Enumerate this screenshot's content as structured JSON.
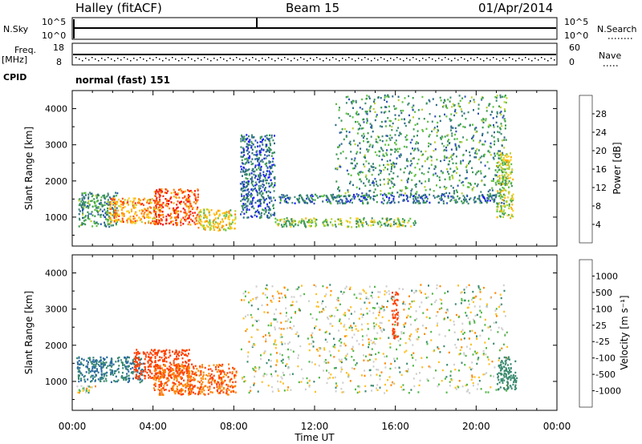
{
  "header": {
    "station": "Halley (fitACF)",
    "beam": "Beam 15",
    "date": "01/Apr/2014"
  },
  "strips": {
    "nsky_label": "N.Sky",
    "nsky_ticks": [
      "10^5",
      "10^0"
    ],
    "nsearch_label": "N.Search",
    "nsearch_ticks": [
      "10^5",
      "10^0"
    ],
    "freq_label": "Freq.",
    "freq_unit": "[MHz]",
    "freq_ticks": [
      "18",
      "8"
    ],
    "nave_label": "Nave",
    "nave_ticks": [
      "60",
      "0"
    ],
    "cpid_label": "CPID",
    "cpid_value": "normal (fast) 151"
  },
  "chart_data": [
    {
      "type": "heatmap",
      "name": "power-panel",
      "ylabel": "Slant Range [km]",
      "xlabel": "Time UT",
      "xlim": [
        0,
        24
      ],
      "ylim": [
        200,
        4500
      ],
      "x_ticks": [
        "00:00",
        "04:00",
        "08:00",
        "12:00",
        "16:00",
        "20:00",
        "00:00"
      ],
      "y_ticks": [
        1000,
        2000,
        3000,
        4000
      ],
      "colorbar": {
        "label": "Power [dB]",
        "ticks": [
          4,
          8,
          12,
          16,
          20,
          24,
          28
        ],
        "range": [
          0,
          32
        ],
        "colors": [
          "#1a1aff",
          "#2a4fb8",
          "#2e6a86",
          "#3d8a72",
          "#3a9a50",
          "#5cc040",
          "#b8d030",
          "#ffd020",
          "#ffb000",
          "#ff8000",
          "#ff5010",
          "#ff2010",
          "#ee0000"
        ]
      },
      "regions": [
        {
          "t_start": 0.3,
          "t_end": 2.2,
          "r_min": 750,
          "r_max": 1700,
          "level_db": 10
        },
        {
          "t_start": 1.8,
          "t_end": 4.3,
          "r_min": 850,
          "r_max": 1550,
          "level_db": 22
        },
        {
          "t_start": 4.0,
          "t_end": 6.2,
          "r_min": 800,
          "r_max": 1800,
          "level_db": 26
        },
        {
          "t_start": 6.2,
          "t_end": 8.1,
          "r_min": 650,
          "r_max": 1250,
          "level_db": 18
        },
        {
          "t_start": 8.3,
          "t_end": 10.0,
          "r_min": 1000,
          "r_max": 3300,
          "level_db": 6
        },
        {
          "t_start": 10.0,
          "t_end": 17.0,
          "r_min": 750,
          "r_max": 1000,
          "level_db": 14
        },
        {
          "t_start": 10.0,
          "t_end": 21.5,
          "r_min": 1400,
          "r_max": 1650,
          "level_db": 7
        },
        {
          "t_start": 13.0,
          "t_end": 21.5,
          "r_min": 1600,
          "r_max": 4400,
          "level_db": 10
        },
        {
          "t_start": 21.0,
          "t_end": 21.8,
          "r_min": 1000,
          "r_max": 2800,
          "level_db": 16
        }
      ]
    },
    {
      "type": "heatmap",
      "name": "velocity-panel",
      "ylabel": "Slant Range [km]",
      "xlabel": "Time UT",
      "xlim": [
        0,
        24
      ],
      "ylim": [
        200,
        4500
      ],
      "x_ticks": [
        "00:00",
        "04:00",
        "08:00",
        "12:00",
        "16:00",
        "20:00",
        "00:00"
      ],
      "y_ticks": [
        1000,
        2000,
        3000,
        4000
      ],
      "colorbar": {
        "label": "Velocity [m s⁻¹]",
        "ticks": [
          "1000",
          "500",
          "100",
          "25",
          "-25",
          "-100",
          "-500",
          "-1000"
        ],
        "colors": [
          "#2040c0",
          "#2a6aa0",
          "#3a8a70",
          "#52b848",
          "#cfcfcf",
          "#ffc020",
          "#ff8800",
          "#ff4000",
          "#ee0000"
        ]
      },
      "regions": [
        {
          "t_start": 0.2,
          "t_end": 3.5,
          "r_min": 1000,
          "r_max": 1700,
          "velocity": 300
        },
        {
          "t_start": 3.0,
          "t_end": 5.8,
          "r_min": 1100,
          "r_max": 1900,
          "velocity": -400
        },
        {
          "t_start": 4.0,
          "t_end": 8.1,
          "r_min": 650,
          "r_max": 1500,
          "velocity": -300
        },
        {
          "t_start": 0.2,
          "t_end": 1.2,
          "r_min": 700,
          "r_max": 900,
          "velocity": 0
        },
        {
          "t_start": 8.3,
          "t_end": 21.5,
          "r_min": 700,
          "r_max": 3700,
          "velocity": 0
        },
        {
          "t_start": 15.8,
          "t_end": 16.1,
          "r_min": 2200,
          "r_max": 3500,
          "velocity": -400
        },
        {
          "t_start": 21.0,
          "t_end": 22.0,
          "r_min": 800,
          "r_max": 1700,
          "velocity": 200
        }
      ]
    }
  ]
}
